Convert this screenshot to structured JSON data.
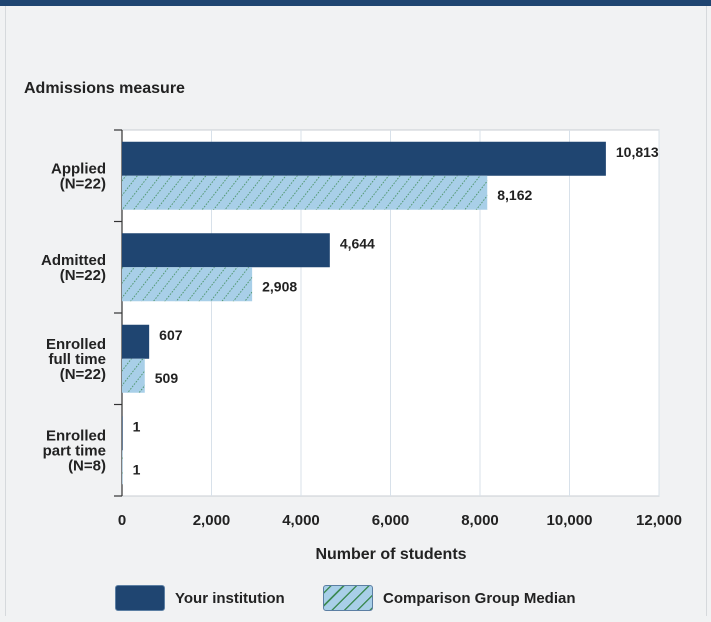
{
  "colors": {
    "primary": "#1f4571",
    "comparison": "#a8cfe8",
    "hatch": "#3f8c57",
    "gridline": "#d8e1ea",
    "background": "#f1f2f3"
  },
  "legend": {
    "primary_label": "Your institution",
    "comparison_label": "Comparison Group Median",
    "primary_icon": "solid-navy-swatch",
    "comparison_icon": "hatched-blue-swatch"
  },
  "chart_data": {
    "type": "bar",
    "orientation": "horizontal",
    "title": "Admissions measure",
    "xlabel": "Number of students",
    "ylabel": "",
    "xlim": [
      0,
      12000
    ],
    "xticks": [
      0,
      2000,
      4000,
      6000,
      8000,
      10000,
      12000
    ],
    "xtick_labels": [
      "0",
      "2,000",
      "4,000",
      "6,000",
      "8,000",
      "10,000",
      "12,000"
    ],
    "grid": "vertical",
    "legend_position": "bottom",
    "categories": [
      [
        "Applied",
        "(N=22)"
      ],
      [
        "Admitted",
        "(N=22)"
      ],
      [
        "Enrolled",
        "full time",
        "(N=22)"
      ],
      [
        "Enrolled",
        "part time",
        "(N=8)"
      ]
    ],
    "series": [
      {
        "name": "Your institution",
        "values": [
          10813,
          4644,
          607,
          1
        ],
        "labels": [
          "10,813",
          "4,644",
          "607",
          "1"
        ]
      },
      {
        "name": "Comparison Group Median",
        "values": [
          8162,
          2908,
          509,
          1
        ],
        "labels": [
          "8,162",
          "2,908",
          "509",
          "1"
        ]
      }
    ]
  }
}
